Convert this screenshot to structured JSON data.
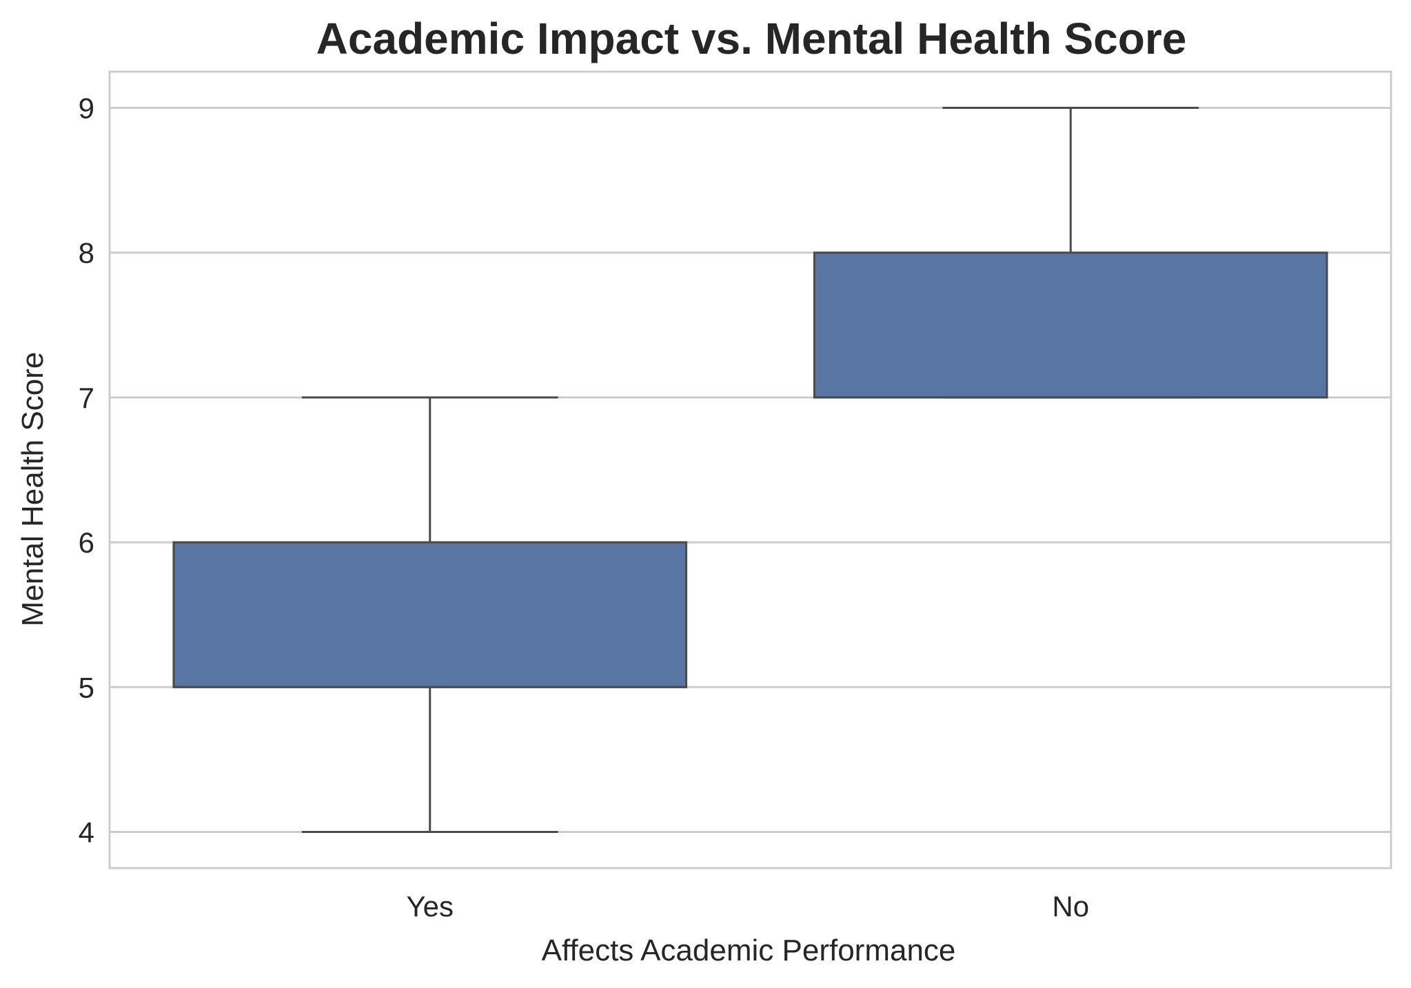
{
  "chart_data": {
    "type": "box",
    "title": "Academic Impact vs. Mental Health Score",
    "xlabel": "Affects Academic Performance",
    "ylabel": "Mental Health Score",
    "categories": [
      "Yes",
      "No"
    ],
    "boxes": [
      {
        "category": "Yes",
        "min": 4,
        "q1": 5,
        "median": 5,
        "q3": 6,
        "max": 7
      },
      {
        "category": "No",
        "min": 7,
        "q1": 7,
        "median": 7,
        "q3": 8,
        "max": 9
      }
    ],
    "yticks": [
      4,
      5,
      6,
      7,
      8,
      9
    ],
    "ylim": [
      3.75,
      9.25
    ],
    "grid": true,
    "box_color": "#5975a4",
    "line_color": "#4a4a4a"
  }
}
